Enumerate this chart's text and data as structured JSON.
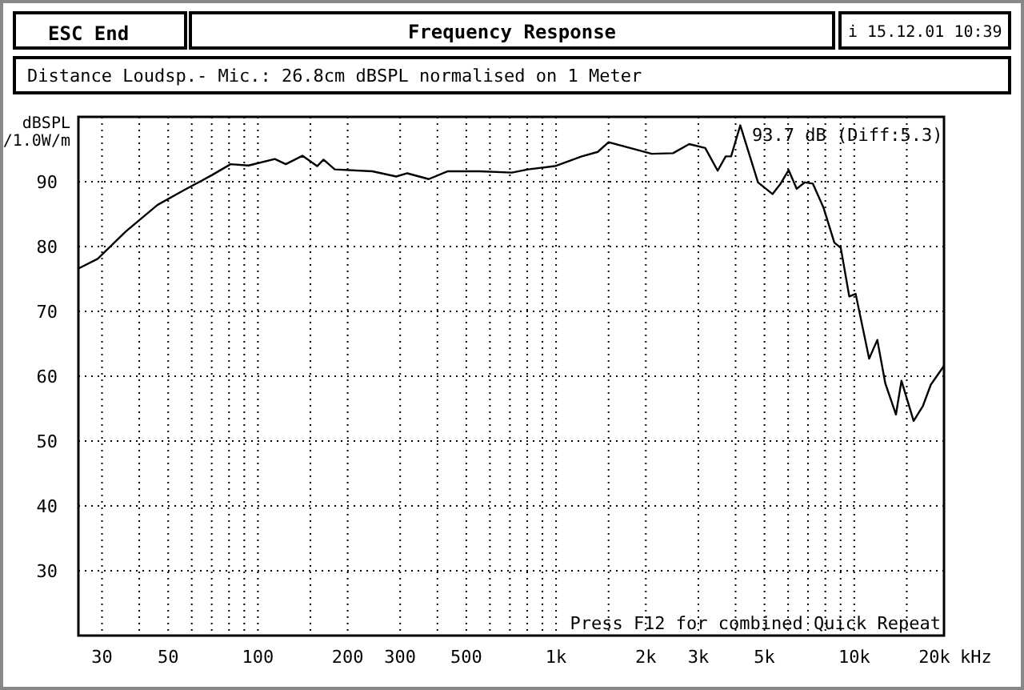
{
  "chart_data": {
    "type": "line",
    "title": "Frequency Response",
    "subtitle": "Distance Loudsp.- Mic.: 26.8cm dBSPL normalised on 1 Meter",
    "ylabel": "dBSPL\n/1.0W/m",
    "annotations": [
      "ESC End",
      "i 15.12.01 10:39",
      "93.7 dB (Diff:5.3)",
      "Press F12 for combined Quick Repeat"
    ],
    "xlabel": "kHz",
    "log": "x",
    "grid": true,
    "marker": "none",
    "line_style": "solid",
    "xlim": [
      25,
      20000
    ],
    "ylim": [
      20,
      100
    ],
    "xticks": [
      30,
      {
        "value": 40,
        "label": null
      },
      50,
      {
        "value": 60,
        "label": null
      },
      {
        "value": 70,
        "label": null
      },
      {
        "value": 80,
        "label": null
      },
      {
        "value": 90,
        "label": null
      },
      100,
      {
        "value": 150,
        "label": null
      },
      200,
      300,
      {
        "value": 400,
        "label": null
      },
      500,
      {
        "value": 600,
        "label": null
      },
      {
        "value": 700,
        "label": null
      },
      {
        "value": 800,
        "label": null
      },
      {
        "value": 900,
        "label": null
      },
      {
        "value": 1000,
        "label": "1k"
      },
      {
        "value": 1500,
        "label": null
      },
      {
        "value": 2000,
        "label": "2k"
      },
      {
        "value": 3000,
        "label": "3k"
      },
      {
        "value": 4000,
        "label": null
      },
      {
        "value": 5000,
        "label": "5k"
      },
      {
        "value": 6000,
        "label": null
      },
      {
        "value": 7000,
        "label": null
      },
      {
        "value": 8000,
        "label": null
      },
      {
        "value": 9000,
        "label": null
      },
      {
        "value": 10000,
        "label": "10k"
      },
      {
        "value": 15000,
        "label": null
      },
      {
        "value": 20000,
        "label": "20k"
      }
    ],
    "yticks": [
      30,
      40,
      50,
      60,
      70,
      80,
      90
    ],
    "series": [
      {
        "color": "#000000",
        "x": [
          25,
          29,
          36,
          46,
          57,
          70,
          81,
          93,
          114,
          124,
          141,
          158,
          166,
          181,
          242,
          291,
          317,
          374,
          432,
          555,
          711,
          805,
          991,
          1219,
          1380,
          1500,
          2093,
          2468,
          2795,
          3164,
          3483,
          3706,
          3864,
          4148,
          4756,
          5318,
          5662,
          6026,
          6413,
          6825,
          7264,
          7887,
          8576,
          9011,
          9624,
          10110,
          11220,
          11950,
          12710,
          13800,
          14400,
          15820,
          16990,
          18070,
          20000
        ],
        "values": [
          76.6,
          78.1,
          82.3,
          86.4,
          88.8,
          91,
          92.7,
          92.5,
          93.5,
          92.7,
          94,
          92.4,
          93.4,
          91.9,
          91.6,
          90.8,
          91.3,
          90.4,
          91.6,
          91.6,
          91.4,
          91.9,
          92.4,
          93.9,
          94.6,
          96.1,
          94.3,
          94.4,
          95.8,
          95.2,
          91.7,
          93.9,
          93.9,
          98.7,
          89.9,
          88.1,
          89.7,
          91.8,
          88.9,
          89.9,
          89.7,
          86,
          80.6,
          79.8,
          72.3,
          72.7,
          62.7,
          65.6,
          58.9,
          54.1,
          59.3,
          53.1,
          55.4,
          58.7,
          61.6
        ]
      }
    ]
  }
}
